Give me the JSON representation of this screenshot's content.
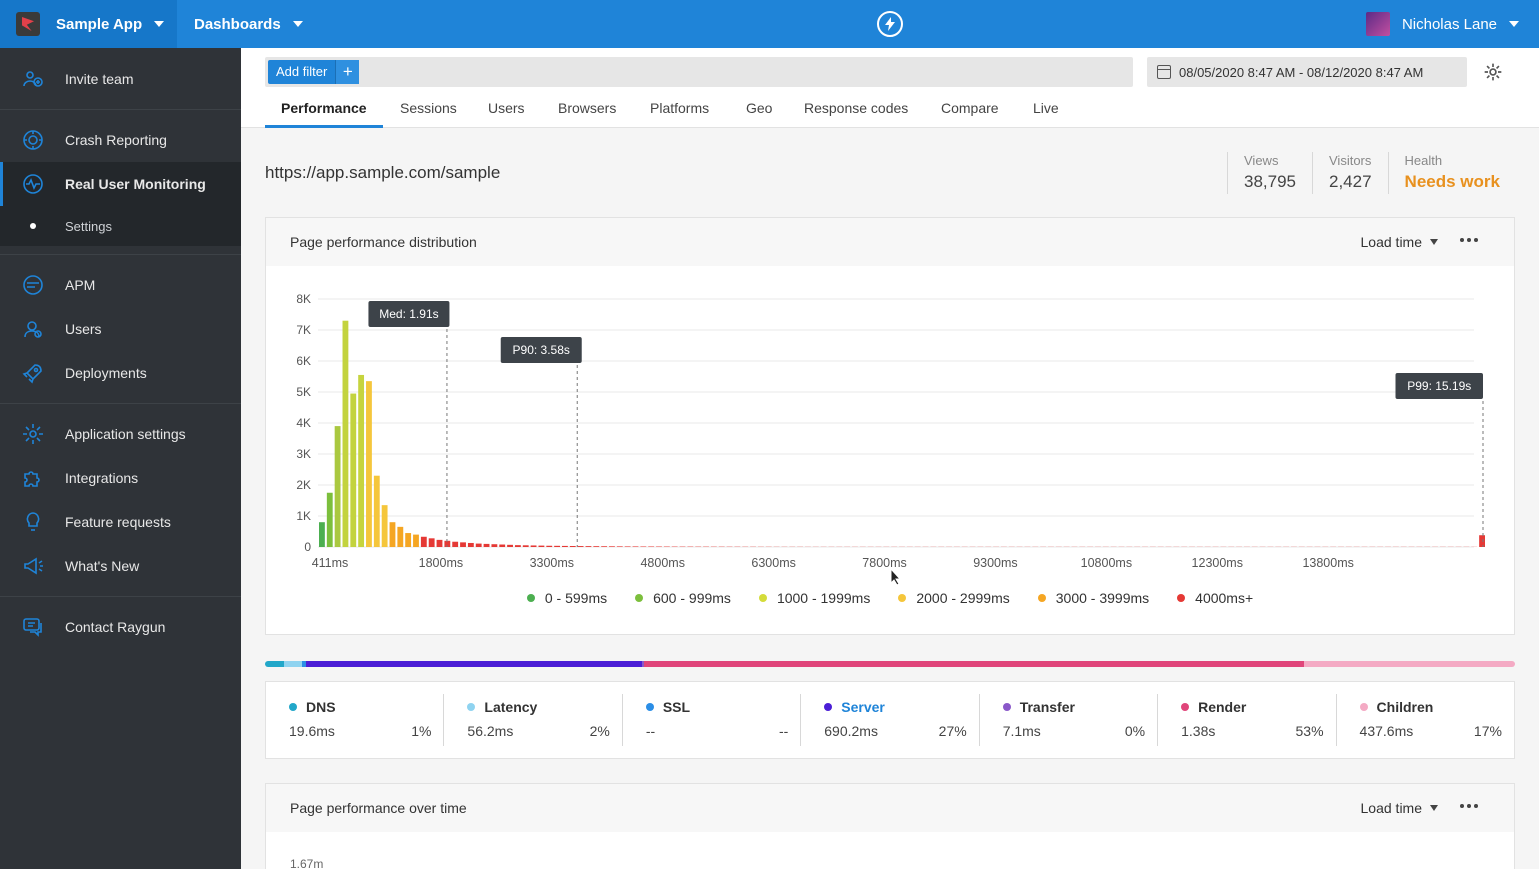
{
  "topbar": {
    "app_name": "Sample App",
    "dashboards_label": "Dashboards",
    "user_name": "Nicholas Lane"
  },
  "sidebar": {
    "items": [
      {
        "label": "Invite team",
        "icon": "invite-team-icon"
      },
      {
        "label": "Crash Reporting",
        "icon": "crash-reporting-icon"
      },
      {
        "label": "Real User Monitoring",
        "icon": "rum-pulse-icon"
      },
      {
        "label": "Settings",
        "icon": "bullet-icon"
      },
      {
        "label": "APM",
        "icon": "apm-icon"
      },
      {
        "label": "Users",
        "icon": "users-icon"
      },
      {
        "label": "Deployments",
        "icon": "rocket-icon"
      },
      {
        "label": "Application settings",
        "icon": "gear-icon"
      },
      {
        "label": "Integrations",
        "icon": "puzzle-icon"
      },
      {
        "label": "Feature requests",
        "icon": "lightbulb-icon"
      },
      {
        "label": "What's New",
        "icon": "megaphone-icon"
      },
      {
        "label": "Contact Raygun",
        "icon": "chat-icon"
      }
    ]
  },
  "filter": {
    "add_filter_label": "Add filter",
    "plus": "+",
    "date_range": "08/05/2020 8:47 AM - 08/12/2020 8:47 AM"
  },
  "tabs": [
    "Performance",
    "Sessions",
    "Users",
    "Browsers",
    "Platforms",
    "Geo",
    "Response codes",
    "Compare",
    "Live"
  ],
  "page": {
    "url": "https://app.sample.com/sample",
    "stats": [
      {
        "label": "Views",
        "value": "38,795"
      },
      {
        "label": "Visitors",
        "value": "2,427"
      },
      {
        "label": "Health",
        "value": "Needs work"
      }
    ]
  },
  "distribution_panel": {
    "title": "Page performance distribution",
    "metric": "Load time"
  },
  "chart_data": {
    "type": "bar",
    "x_tick_labels": [
      "411ms",
      "1800ms",
      "3300ms",
      "4800ms",
      "6300ms",
      "7800ms",
      "9300ms",
      "10800ms",
      "12300ms",
      "13800ms"
    ],
    "y_tick_labels": [
      "0",
      "1K",
      "2K",
      "3K",
      "4K",
      "5K",
      "6K",
      "7K",
      "8K"
    ],
    "ylim": [
      0,
      8000
    ],
    "values": [
      800,
      1750,
      3900,
      7300,
      4950,
      5550,
      5350,
      2300,
      1350,
      800,
      650,
      450,
      400,
      330,
      280,
      230,
      200,
      170,
      150,
      130,
      110,
      100,
      90,
      80,
      70,
      60,
      55,
      50,
      45,
      40,
      38,
      35,
      32,
      30,
      28,
      26,
      24,
      22,
      20,
      18,
      18,
      16,
      16,
      15,
      14,
      13,
      12,
      12,
      11,
      11,
      10,
      10,
      9,
      9,
      8,
      8,
      7,
      7,
      6,
      6,
      6,
      6,
      5,
      5,
      5,
      5,
      5,
      5,
      5,
      5,
      5,
      5,
      5,
      5,
      5,
      5,
      5,
      5,
      5,
      5,
      5,
      5,
      5,
      5,
      5,
      5,
      5,
      5,
      5,
      5,
      5,
      5,
      5,
      5,
      5,
      5,
      5,
      5,
      5,
      5,
      5,
      5,
      5,
      5,
      5,
      5,
      5,
      5,
      5,
      5,
      5,
      5,
      5,
      5,
      5,
      5,
      5,
      5,
      5,
      5,
      5,
      5,
      5,
      5,
      5,
      5,
      5,
      5,
      5,
      5,
      5,
      5,
      5,
      5,
      5,
      5,
      5,
      5,
      5,
      5,
      5,
      5,
      5,
      5,
      5,
      5,
      5,
      5,
      380
    ],
    "bar_colors": [
      "#4caf50",
      "#7cbf3c",
      "#aac840",
      "#c3d33e",
      "#c3d33e",
      "#c6d43e",
      "#f5c63b",
      "#f5c63b",
      "#f5c63b",
      "#f5a623",
      "#f5a623",
      "#f5a623",
      "#f5a623"
    ],
    "markers": [
      {
        "label": "Med: 1.91s",
        "x_ms": 1910
      },
      {
        "label": "P90: 3.58s",
        "x_ms": 3580
      },
      {
        "label": "P99: 15.19s",
        "x_ms": 15190
      }
    ],
    "x_range_ms": [
      411,
      15190
    ],
    "legend": [
      {
        "label": "0 - 599ms",
        "color": "#4caf50"
      },
      {
        "label": "600 - 999ms",
        "color": "#7cbf3c"
      },
      {
        "label": "1000 - 1999ms",
        "color": "#d4dc3a"
      },
      {
        "label": "2000 - 2999ms",
        "color": "#f5c63b"
      },
      {
        "label": "3000 - 3999ms",
        "color": "#f5a623"
      },
      {
        "label": "4000ms+",
        "color": "#e53935"
      }
    ]
  },
  "timings": [
    {
      "name": "DNS",
      "time": "19.6ms",
      "pct": "1%",
      "color": "#22a7c9"
    },
    {
      "name": "Latency",
      "time": "56.2ms",
      "pct": "2%",
      "color": "#8fd3f0"
    },
    {
      "name": "SSL",
      "time": "--",
      "pct": "--",
      "color": "#2b8ee6"
    },
    {
      "name": "Server",
      "time": "690.2ms",
      "pct": "27%",
      "color": "#4b1ed6"
    },
    {
      "name": "Transfer",
      "time": "7.1ms",
      "pct": "0%",
      "color": "#8a58c9"
    },
    {
      "name": "Render",
      "time": "1.38s",
      "pct": "53%",
      "color": "#e0457a"
    },
    {
      "name": "Children",
      "time": "437.6ms",
      "pct": "17%",
      "color": "#f4aac4"
    }
  ],
  "over_time_panel": {
    "title": "Page performance over time",
    "metric": "Load time",
    "y_top_label": "1.67m"
  }
}
